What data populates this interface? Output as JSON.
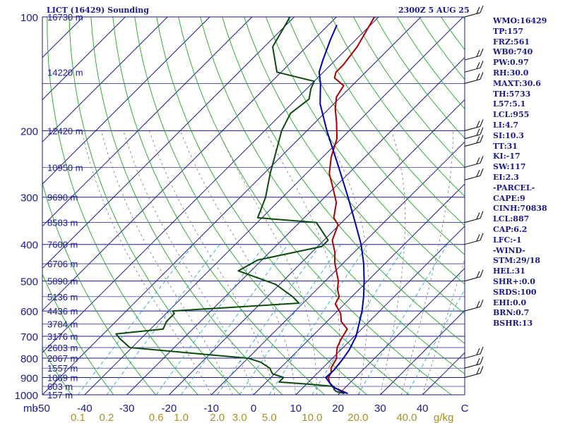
{
  "header": {
    "station": "LICT (16429) Sounding",
    "time": "2300Z  5 AUG 25"
  },
  "indices": [
    "WMO:16429",
    "TP:157",
    "FRZ:561",
    "WB0:740",
    "PW:0.97",
    "RH:30.0",
    "MAXT:30.6",
    "TH:5733",
    "L57:5.1",
    "LCL:955",
    "LI:4.7",
    "SI:10.3",
    "TT:31",
    "KI:-17",
    "SW:117",
    "EI:2.3",
    "-PARCEL-",
    "CAPE:9",
    "CINH:70838",
    "LCL:887",
    "CAP:6.2",
    "LFC:-1",
    "-WIND-",
    "STM:29/18",
    "HEL:31",
    "SHR+:0.0",
    "SRDS:100",
    "EHI:0.0",
    "BRN:0.7",
    "BSHR:13"
  ],
  "chart_data": {
    "type": "line",
    "chart_kind": "skew-T log-P sounding",
    "p_range": [
      1000,
      100
    ],
    "t_range_at_1000": [
      -50,
      50
    ],
    "pressure_ticks": [
      100,
      200,
      300,
      400,
      500,
      600,
      700,
      800,
      900,
      1000
    ],
    "pressure_unit_label": "mb",
    "temperature_ticks": [
      -50,
      -40,
      -30,
      -20,
      -10,
      0,
      10,
      20,
      30,
      40
    ],
    "temperature_tick_labels": [
      "-50",
      "-40",
      "-30",
      "-20",
      "-10",
      "0",
      "10",
      "20",
      "30",
      "40"
    ],
    "celsius_label": "C",
    "mixing_ratio_labels": [
      "0.1",
      "0.2",
      "0.6",
      "1.0",
      "2.0",
      "3.0",
      "5.0",
      "10.0",
      "20.0",
      "40.0"
    ],
    "mixing_ratio_unit": "g/kg",
    "height_labels": [
      {
        "p": 100,
        "label": "16730 m"
      },
      {
        "p": 140,
        "label": "14220 m"
      },
      {
        "p": 200,
        "label": "12420 m"
      },
      {
        "p": 250,
        "label": "10950 m"
      },
      {
        "p": 300,
        "label": "9690 m"
      },
      {
        "p": 350,
        "label": "8583 m"
      },
      {
        "p": 400,
        "label": "7600 m"
      },
      {
        "p": 450,
        "label": "6706 m"
      },
      {
        "p": 500,
        "label": "5890 m"
      },
      {
        "p": 550,
        "label": "5136 m"
      },
      {
        "p": 600,
        "label": "4436 m"
      },
      {
        "p": 650,
        "label": "3784 m"
      },
      {
        "p": 700,
        "label": "3176 m"
      },
      {
        "p": 750,
        "label": "2603 m"
      },
      {
        "p": 800,
        "label": "2067 m"
      },
      {
        "p": 850,
        "label": "1557 m"
      },
      {
        "p": 900,
        "label": "1069 m"
      },
      {
        "p": 950,
        "label": "603 m"
      },
      {
        "p": 1000,
        "label": "157 m"
      }
    ],
    "series": [
      {
        "color": "#aa0000",
        "points": [
          [
            992,
            22
          ],
          [
            980,
            20.5
          ],
          [
            955,
            17
          ],
          [
            930,
            15.2
          ],
          [
            900,
            13.6
          ],
          [
            875,
            13.2
          ],
          [
            850,
            12
          ],
          [
            800,
            11
          ],
          [
            780,
            10
          ],
          [
            750,
            8.6
          ],
          [
            715,
            7.6
          ],
          [
            670,
            6.6
          ],
          [
            640,
            3.4
          ],
          [
            610,
            1.4
          ],
          [
            575,
            -2.2
          ],
          [
            550,
            -3
          ],
          [
            525,
            -5.2
          ],
          [
            500,
            -6.9
          ],
          [
            470,
            -9.8
          ],
          [
            445,
            -12.3
          ],
          [
            420,
            -14.5
          ],
          [
            390,
            -18
          ],
          [
            355,
            -20.3
          ],
          [
            340,
            -23
          ],
          [
            310,
            -26
          ],
          [
            285,
            -30
          ],
          [
            260,
            -34.5
          ],
          [
            235,
            -38
          ],
          [
            210,
            -41
          ],
          [
            190,
            -45
          ],
          [
            175,
            -48.5
          ],
          [
            163,
            -51
          ],
          [
            152,
            -52
          ],
          [
            145,
            -56
          ],
          [
            140,
            -57
          ],
          [
            134,
            -57
          ],
          [
            120,
            -58
          ],
          [
            100,
            -61
          ]
        ]
      },
      {
        "color": "#0b4a0b",
        "points": [
          [
            992,
            21.2
          ],
          [
            980,
            18.8
          ],
          [
            968,
            17.8
          ],
          [
            950,
            17
          ],
          [
            938,
            11
          ],
          [
            925,
            3
          ],
          [
            900,
            3
          ],
          [
            880,
            -0.5
          ],
          [
            850,
            -2.5
          ],
          [
            820,
            -6
          ],
          [
            800,
            -10
          ],
          [
            750,
            -40.5
          ],
          [
            710,
            -45
          ],
          [
            690,
            -47
          ],
          [
            670,
            -37
          ],
          [
            640,
            -38
          ],
          [
            610,
            -38
          ],
          [
            600,
            -39
          ],
          [
            572,
            -11
          ],
          [
            550,
            -14
          ],
          [
            510,
            -21
          ],
          [
            470,
            -33
          ],
          [
            440,
            -31
          ],
          [
            405,
            -19
          ],
          [
            390,
            -19
          ],
          [
            350,
            -26
          ],
          [
            340,
            -41
          ],
          [
            300,
            -44
          ],
          [
            260,
            -48.5
          ],
          [
            230,
            -52
          ],
          [
            200,
            -56
          ],
          [
            180,
            -58
          ],
          [
            165,
            -57
          ],
          [
            155,
            -59
          ],
          [
            148,
            -60
          ],
          [
            140,
            -71
          ],
          [
            120,
            -78
          ],
          [
            100,
            -81
          ]
        ]
      },
      {
        "color": "#0000aa",
        "points": [
          [
            992,
            22
          ],
          [
            980,
            20
          ],
          [
            955,
            17.2
          ],
          [
            930,
            15.2
          ],
          [
            900,
            13
          ],
          [
            860,
            13.2
          ],
          [
            800,
            12.6
          ],
          [
            760,
            12
          ],
          [
            700,
            10.4
          ],
          [
            650,
            8.2
          ],
          [
            600,
            5.8
          ],
          [
            550,
            2.8
          ],
          [
            500,
            -0.8
          ],
          [
            450,
            -5
          ],
          [
            400,
            -10.2
          ],
          [
            350,
            -16.8
          ],
          [
            300,
            -24.5
          ],
          [
            250,
            -33.8
          ],
          [
            200,
            -45.3
          ],
          [
            170,
            -53.2
          ],
          [
            150,
            -58
          ],
          [
            140,
            -61
          ],
          [
            130,
            -63
          ],
          [
            115,
            -66
          ],
          [
            105,
            -68
          ]
        ]
      }
    ]
  }
}
